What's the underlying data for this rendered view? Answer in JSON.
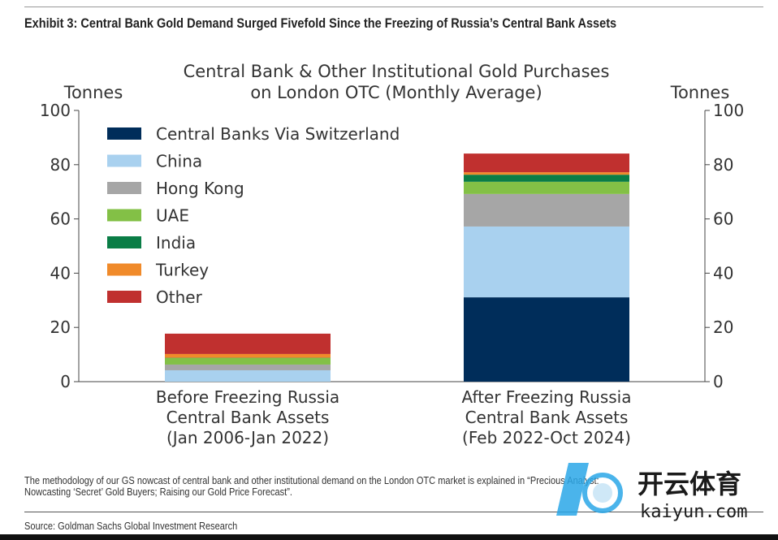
{
  "header": {
    "exhibit_title": "Exhibit 3: Central Bank Gold Demand Surged Fivefold Since the Freezing of Russia’s Central Bank Assets"
  },
  "chart_data": {
    "type": "bar",
    "stacked": true,
    "title": [
      "Central Bank & Other Institutional Gold Purchases",
      "on London OTC (Monthly Average)"
    ],
    "ylabel_left": "Tonnes",
    "ylabel_right": "Tonnes",
    "ylim": [
      0,
      100
    ],
    "yticks": [
      "0",
      "20",
      "40",
      "60",
      "80",
      "100"
    ],
    "categories": [
      [
        "Before Freezing Russia",
        "Central Bank Assets",
        "(Jan 2006-Jan 2022)"
      ],
      [
        "After Freezing Russia",
        "Central Bank Assets",
        "(Feb 2022-Oct 2024)"
      ]
    ],
    "legend_position": "top-left",
    "series": [
      {
        "name": "Central Banks Via Switzerland",
        "color": "#002d5a",
        "values": [
          0,
          31.1
        ]
      },
      {
        "name": "China",
        "color": "#a9d1ef",
        "values": [
          4.2,
          26.1
        ]
      },
      {
        "name": "Hong Kong",
        "color": "#a6a6a6",
        "values": [
          2.1,
          12.0
        ]
      },
      {
        "name": "UAE",
        "color": "#83c046",
        "values": [
          2.4,
          4.5
        ]
      },
      {
        "name": "India",
        "color": "#0a7d46",
        "values": [
          0.1,
          2.6
        ]
      },
      {
        "name": "Turkey",
        "color": "#f08a2a",
        "values": [
          1.4,
          0.9
        ]
      },
      {
        "name": "Other",
        "color": "#c0302f",
        "values": [
          7.5,
          6.9
        ]
      }
    ]
  },
  "footer": {
    "note": [
      "The methodology of our GS nowcast of central bank and other institutional demand on the London OTC market is explained in “Precious Analyst:",
      "Nowcasting ‘Secret’ Gold Buyers; Raising our Gold Price Forecast”."
    ],
    "source": "Source: Goldman Sachs Global Investment Research"
  },
  "watermark": {
    "brand_cn": "开云体育",
    "brand_url": "kaiyun.com"
  }
}
